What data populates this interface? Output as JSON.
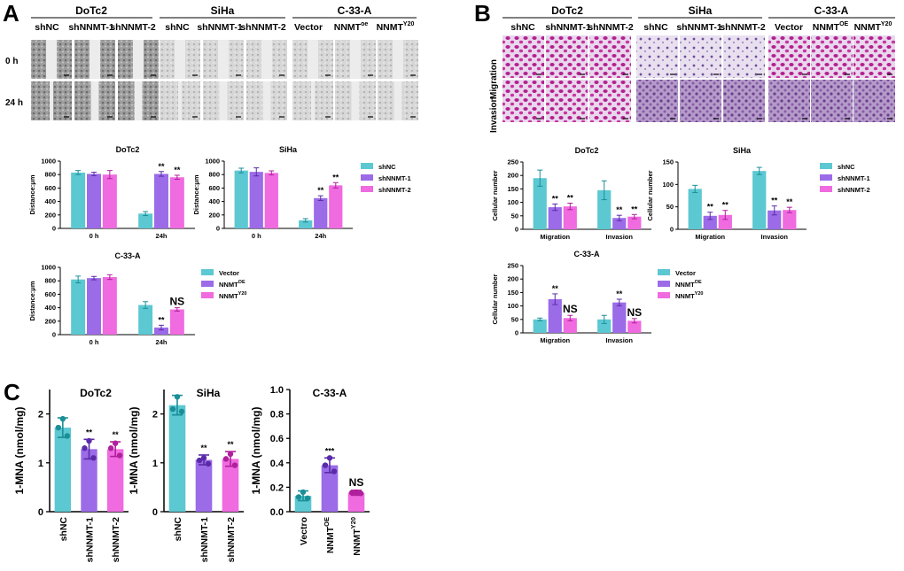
{
  "panels": {
    "A": "A",
    "B": "B",
    "C": "C"
  },
  "sup": {
    "oe": "oe",
    "OE": "OE",
    "Y20": "Y20"
  },
  "colors": {
    "teal": "#5cc8d2",
    "purple": "#9b6be8",
    "pink": "#f06ae0",
    "teal_err": "#1a8f98",
    "purple_err": "#5a2aa8",
    "pink_err": "#b0209c"
  },
  "micro_A": {
    "groups": [
      "DoTc2",
      "SiHa",
      "C-33-A"
    ],
    "columns": [
      "shNC",
      "shNNMT-1",
      "shNNMT-2",
      "shNC",
      "shNNMT-1",
      "shNNMT-2",
      "Vector",
      "NNMT",
      "NNMT"
    ],
    "rows": [
      "0 h",
      "24 h"
    ]
  },
  "micro_B": {
    "groups": [
      "DoTc2",
      "SiHa",
      "C-33-A"
    ],
    "columns": [
      "shNC",
      "shNNMT-1",
      "shNNMT-2",
      "shNC",
      "shNNMT-1",
      "shNNMT-2",
      "Vector",
      "NNMT",
      "NNMT"
    ],
    "rows": [
      "Migration",
      "Invasion"
    ]
  },
  "chart_data": [
    {
      "id": "A-DoTc2",
      "type": "bar",
      "title": "DoTc2",
      "ylabel": "Distance:μm",
      "categories": [
        "0 h",
        "24h"
      ],
      "ylim": [
        0,
        1000
      ],
      "yticks": [
        "0",
        "200",
        "400",
        "600",
        "800",
        "1000"
      ],
      "series": [
        {
          "name": "shNC",
          "values": [
            830,
            220
          ],
          "errors": [
            30,
            30
          ]
        },
        {
          "name": "shNNMT-1",
          "values": [
            810,
            810
          ],
          "errors": [
            25,
            35
          ]
        },
        {
          "name": "shNNMT-2",
          "values": [
            800,
            760
          ],
          "errors": [
            60,
            30
          ]
        }
      ],
      "annotations": [
        {
          "category": "24h",
          "series": "shNNMT-1",
          "text": "**"
        },
        {
          "category": "24h",
          "series": "shNNMT-2",
          "text": "**"
        }
      ]
    },
    {
      "id": "A-SiHa",
      "type": "bar",
      "title": "SiHa",
      "ylabel": "Distance:μm",
      "categories": [
        "0 h",
        "24h"
      ],
      "ylim": [
        0,
        1000
      ],
      "yticks": [
        "0",
        "200",
        "400",
        "600",
        "800",
        "1000"
      ],
      "series": [
        {
          "name": "shNC",
          "values": [
            860,
            120
          ],
          "errors": [
            35,
            25
          ]
        },
        {
          "name": "shNNMT-1",
          "values": [
            840,
            450
          ],
          "errors": [
            60,
            35
          ]
        },
        {
          "name": "shNNMT-2",
          "values": [
            825,
            640
          ],
          "errors": [
            30,
            40
          ]
        }
      ],
      "annotations": [
        {
          "category": "24h",
          "series": "shNNMT-1",
          "text": "**"
        },
        {
          "category": "24h",
          "series": "shNNMT-2",
          "text": "**"
        }
      ],
      "legend": [
        "shNC",
        "shNNMT-1",
        "shNNMT-2"
      ]
    },
    {
      "id": "A-C33A",
      "type": "bar",
      "title": "C-33-A",
      "ylabel": "Distance:μm",
      "categories": [
        "0 h",
        "24h"
      ],
      "ylim": [
        0,
        1000
      ],
      "yticks": [
        "0",
        "200",
        "400",
        "600",
        "800",
        "1000"
      ],
      "series": [
        {
          "name": "Vector",
          "values": [
            820,
            440
          ],
          "errors": [
            50,
            50
          ]
        },
        {
          "name": "NNMT-OE",
          "values": [
            840,
            105
          ],
          "errors": [
            25,
            35
          ]
        },
        {
          "name": "NNMT-Y20",
          "values": [
            855,
            375
          ],
          "errors": [
            35,
            25
          ]
        }
      ],
      "annotations": [
        {
          "category": "24h",
          "series": "NNMT-OE",
          "text": "**"
        },
        {
          "category": "24h",
          "series": "NNMT-Y20",
          "text": "NS"
        }
      ],
      "legend": [
        "Vector",
        "NNMT",
        "NNMT"
      ]
    },
    {
      "id": "B-DoTc2",
      "type": "bar",
      "title": "DoTc2",
      "ylabel": "Cellular number",
      "categories": [
        "Migration",
        "Invasion"
      ],
      "ylim": [
        0,
        250
      ],
      "yticks": [
        "0",
        "50",
        "100",
        "150",
        "200",
        "250"
      ],
      "series": [
        {
          "name": "shNC",
          "values": [
            190,
            145
          ],
          "errors": [
            30,
            35
          ]
        },
        {
          "name": "shNNMT-1",
          "values": [
            82,
            42
          ],
          "errors": [
            12,
            10
          ]
        },
        {
          "name": "shNNMT-2",
          "values": [
            85,
            47
          ],
          "errors": [
            12,
            8
          ]
        }
      ],
      "annotations": [
        {
          "category": "Migration",
          "series": "shNNMT-1",
          "text": "**"
        },
        {
          "category": "Migration",
          "series": "shNNMT-2",
          "text": "**"
        },
        {
          "category": "Invasion",
          "series": "shNNMT-1",
          "text": "**"
        },
        {
          "category": "Invasion",
          "series": "shNNMT-2",
          "text": "**"
        }
      ]
    },
    {
      "id": "B-SiHa",
      "type": "bar",
      "title": "SiHa",
      "ylabel": "Cellular number",
      "categories": [
        "Migration",
        "Invasion"
      ],
      "ylim": [
        0,
        150
      ],
      "yticks": [
        "0",
        "50",
        "100",
        "150"
      ],
      "series": [
        {
          "name": "shNC",
          "values": [
            90,
            130
          ],
          "errors": [
            8,
            8
          ]
        },
        {
          "name": "shNNMT-1",
          "values": [
            30,
            42
          ],
          "errors": [
            8,
            10
          ]
        },
        {
          "name": "shNNMT-2",
          "values": [
            32,
            43
          ],
          "errors": [
            10,
            6
          ]
        }
      ],
      "annotations": [
        {
          "category": "Migration",
          "series": "shNNMT-1",
          "text": "**"
        },
        {
          "category": "Migration",
          "series": "shNNMT-2",
          "text": "**"
        },
        {
          "category": "Invasion",
          "series": "shNNMT-1",
          "text": "**"
        },
        {
          "category": "Invasion",
          "series": "shNNMT-2",
          "text": "**"
        }
      ],
      "legend": [
        "shNC",
        "shNNMT-1",
        "shNNMT-2"
      ]
    },
    {
      "id": "B-C33A",
      "type": "bar",
      "title": "C-33-A",
      "ylabel": "Cellular number",
      "categories": [
        "Migration",
        "Invasion"
      ],
      "ylim": [
        0,
        250
      ],
      "yticks": [
        "0",
        "50",
        "100",
        "150",
        "200",
        "250"
      ],
      "series": [
        {
          "name": "Vector",
          "values": [
            50,
            50
          ],
          "errors": [
            5,
            15
          ]
        },
        {
          "name": "NNMT-OE",
          "values": [
            125,
            113
          ],
          "errors": [
            20,
            12
          ]
        },
        {
          "name": "NNMT-Y20",
          "values": [
            55,
            45
          ],
          "errors": [
            10,
            8
          ]
        }
      ],
      "annotations": [
        {
          "category": "Migration",
          "series": "NNMT-OE",
          "text": "**"
        },
        {
          "category": "Migration",
          "series": "NNMT-Y20",
          "text": "NS"
        },
        {
          "category": "Invasion",
          "series": "NNMT-OE",
          "text": "**"
        },
        {
          "category": "Invasion",
          "series": "NNMT-Y20",
          "text": "NS"
        }
      ],
      "legend": [
        "Vector",
        "NNMT",
        "NNMT"
      ]
    },
    {
      "id": "C-DoTc2",
      "type": "bar",
      "title": "DoTc2",
      "ylabel": "1-MNA (nmol/mg)",
      "categories": [
        "shNC",
        "shNNMT-1",
        "shNNMT-2"
      ],
      "values": [
        1.72,
        1.28,
        1.28
      ],
      "errors": [
        0.2,
        0.2,
        0.15
      ],
      "points": [
        [
          1.9,
          1.72,
          1.55
        ],
        [
          1.45,
          1.3,
          1.1
        ],
        [
          1.4,
          1.3,
          1.15
        ]
      ],
      "ylim": [
        0,
        2.5
      ],
      "yticks": [
        "0",
        "1",
        "2"
      ],
      "annotations": [
        "",
        "**",
        "**"
      ]
    },
    {
      "id": "C-SiHa",
      "type": "bar",
      "title": "SiHa",
      "ylabel": "1-MNA (nmol/mg)",
      "categories": [
        "shNC",
        "shNNMT-1",
        "shNNMT-2"
      ],
      "values": [
        2.18,
        1.06,
        1.08
      ],
      "errors": [
        0.2,
        0.1,
        0.15
      ],
      "points": [
        [
          2.35,
          2.1,
          2.05
        ],
        [
          1.1,
          1.05,
          0.98
        ],
        [
          1.18,
          1.08,
          0.95
        ]
      ],
      "ylim": [
        0,
        2.5
      ],
      "yticks": [
        "0",
        "1",
        "2"
      ],
      "annotations": [
        "",
        "**",
        "**"
      ]
    },
    {
      "id": "C-C33A",
      "type": "bar",
      "title": "C-33-A",
      "ylabel": "1-MNA (nmol/mg)",
      "categories": [
        "Vectro",
        "NNMT-OE",
        "NNMT-Y20"
      ],
      "values": [
        0.13,
        0.38,
        0.155
      ],
      "errors": [
        0.04,
        0.06,
        0.02
      ],
      "points": [
        [
          0.16,
          0.12,
          0.11
        ],
        [
          0.44,
          0.38,
          0.33
        ],
        [
          0.16,
          0.155,
          0.15
        ]
      ],
      "ylim": [
        0,
        1.0
      ],
      "yticks": [
        "0.0",
        "0.2",
        "0.4",
        "0.6",
        "0.8",
        "1.0"
      ],
      "annotations": [
        "",
        "***",
        "NS"
      ]
    }
  ]
}
